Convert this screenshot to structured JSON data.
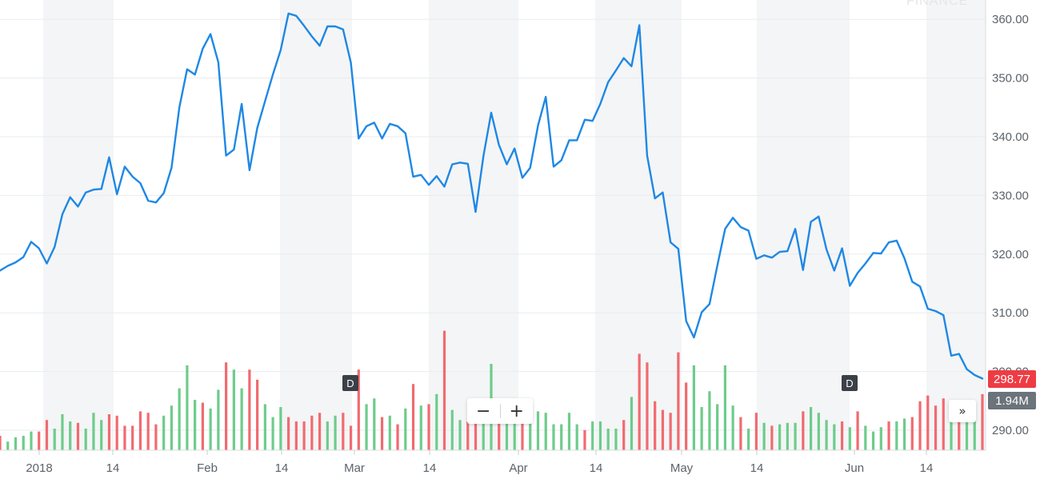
{
  "watermark": "FINANCE",
  "price_tag": "298.77",
  "volume_tag": "1.94M",
  "zoom_out_label": "−",
  "zoom_in_label": "+",
  "expand_label": "»",
  "dividend_marker_label": "D",
  "colors": {
    "line": "#1e88e5",
    "volume_up": "#6dcc8b",
    "volume_down": "#f16a70",
    "band": "#f4f5f6",
    "grid": "#e9ebed",
    "price_tag_bg": "#ee3c44",
    "volume_tag_bg": "#6b737b"
  },
  "chart_data": {
    "type": "line",
    "ylim": [
      285,
      361.5
    ],
    "y_ticks": [
      "290.00",
      "300.00",
      "310.00",
      "320.00",
      "330.00",
      "340.00",
      "350.00",
      "360.00"
    ],
    "x_ticks": [
      "2018",
      "14",
      "Feb",
      "14",
      "Mar",
      "14",
      "Apr",
      "14",
      "May",
      "14",
      "Jun",
      "14"
    ],
    "dividend_markers": [
      "Mar",
      "Jun"
    ],
    "price": [
      317.2,
      318.0,
      318.6,
      319.5,
      322.1,
      321.0,
      318.4,
      321.2,
      326.8,
      329.7,
      328.1,
      330.5,
      331.0,
      331.1,
      336.5,
      330.2,
      334.9,
      333.2,
      332.1,
      329.1,
      328.8,
      330.4,
      334.7,
      345.0,
      351.5,
      350.6,
      355.0,
      357.5,
      352.7,
      336.8,
      337.8,
      345.6,
      334.3,
      341.5,
      346.1,
      350.6,
      354.8,
      361.0,
      360.6,
      358.9,
      357.1,
      355.5,
      358.8,
      358.8,
      358.3,
      352.6,
      339.7,
      341.8,
      342.4,
      339.7,
      342.2,
      341.8,
      340.6,
      333.2,
      333.5,
      331.8,
      333.3,
      331.5,
      335.3,
      335.6,
      335.4,
      327.2,
      336.7,
      344.1,
      338.6,
      335.3,
      338.0,
      333.0,
      334.7,
      341.9,
      346.8,
      334.9,
      336.0,
      339.4,
      339.4,
      342.9,
      342.7,
      345.6,
      349.3,
      351.3,
      353.4,
      352.0,
      359.0,
      336.8,
      329.5,
      330.5,
      322.0,
      320.9,
      308.6,
      305.8,
      310.1,
      311.5,
      318.0,
      324.3,
      326.2,
      324.6,
      324.0,
      319.2,
      319.8,
      319.4,
      320.4,
      320.5,
      324.3,
      317.3,
      325.5,
      326.4,
      320.8,
      317.2,
      321.0,
      314.6,
      316.8,
      318.4,
      320.2,
      320.1,
      322.0,
      322.3,
      319.3,
      315.3,
      314.5,
      310.7,
      310.3,
      309.6,
      302.7,
      303.0,
      300.4,
      299.4,
      298.8
    ],
    "volume_scale_max": 8.5,
    "volume": [
      [
        1.0,
        0
      ],
      [
        0.6,
        1
      ],
      [
        0.9,
        1
      ],
      [
        1.0,
        1
      ],
      [
        1.3,
        1
      ],
      [
        1.3,
        0
      ],
      [
        2.1,
        0
      ],
      [
        1.5,
        1
      ],
      [
        2.5,
        1
      ],
      [
        2.0,
        1
      ],
      [
        1.9,
        0
      ],
      [
        1.5,
        1
      ],
      [
        2.6,
        1
      ],
      [
        2.1,
        1
      ],
      [
        2.5,
        0
      ],
      [
        2.4,
        0
      ],
      [
        1.7,
        0
      ],
      [
        1.7,
        0
      ],
      [
        2.7,
        0
      ],
      [
        2.6,
        0
      ],
      [
        1.8,
        0
      ],
      [
        2.4,
        1
      ],
      [
        3.1,
        1
      ],
      [
        4.3,
        1
      ],
      [
        5.9,
        1
      ],
      [
        3.5,
        1
      ],
      [
        3.3,
        0
      ],
      [
        2.9,
        1
      ],
      [
        4.2,
        1
      ],
      [
        6.1,
        0
      ],
      [
        5.6,
        1
      ],
      [
        4.3,
        1
      ],
      [
        5.6,
        0
      ],
      [
        4.9,
        0
      ],
      [
        3.2,
        1
      ],
      [
        2.3,
        1
      ],
      [
        3.0,
        1
      ],
      [
        2.3,
        0
      ],
      [
        2.0,
        0
      ],
      [
        2.0,
        0
      ],
      [
        2.4,
        0
      ],
      [
        2.6,
        0
      ],
      [
        2.0,
        1
      ],
      [
        2.4,
        1
      ],
      [
        2.6,
        0
      ],
      [
        1.7,
        0
      ],
      [
        5.6,
        0
      ],
      [
        3.2,
        1
      ],
      [
        3.6,
        1
      ],
      [
        2.3,
        0
      ],
      [
        2.4,
        1
      ],
      [
        1.8,
        0
      ],
      [
        2.9,
        1
      ],
      [
        4.6,
        0
      ],
      [
        3.1,
        1
      ],
      [
        3.2,
        0
      ],
      [
        3.9,
        1
      ],
      [
        8.3,
        0
      ],
      [
        2.8,
        1
      ],
      [
        2.1,
        1
      ],
      [
        2.0,
        0
      ],
      [
        2.1,
        0
      ],
      [
        2.7,
        1
      ],
      [
        6.0,
        1
      ],
      [
        1.9,
        0
      ],
      [
        2.3,
        1
      ],
      [
        2.2,
        1
      ],
      [
        2.0,
        0
      ],
      [
        2.4,
        1
      ],
      [
        2.7,
        1
      ],
      [
        2.6,
        1
      ],
      [
        1.8,
        1
      ],
      [
        1.8,
        1
      ],
      [
        2.6,
        1
      ],
      [
        1.8,
        1
      ],
      [
        1.4,
        0
      ],
      [
        2.0,
        1
      ],
      [
        2.0,
        1
      ],
      [
        1.5,
        1
      ],
      [
        1.5,
        1
      ],
      [
        2.1,
        0
      ],
      [
        3.7,
        1
      ],
      [
        6.7,
        0
      ],
      [
        6.1,
        0
      ],
      [
        3.4,
        0
      ],
      [
        2.8,
        0
      ],
      [
        2.6,
        0
      ],
      [
        6.8,
        0
      ],
      [
        4.7,
        0
      ],
      [
        5.9,
        1
      ],
      [
        3.0,
        1
      ],
      [
        4.1,
        1
      ],
      [
        3.2,
        1
      ],
      [
        5.9,
        1
      ],
      [
        3.1,
        1
      ],
      [
        2.3,
        0
      ],
      [
        1.5,
        1
      ],
      [
        2.6,
        0
      ],
      [
        1.9,
        1
      ],
      [
        1.7,
        0
      ],
      [
        1.8,
        1
      ],
      [
        1.9,
        1
      ],
      [
        1.9,
        1
      ],
      [
        2.7,
        0
      ],
      [
        3.0,
        1
      ],
      [
        2.6,
        1
      ],
      [
        2.1,
        1
      ],
      [
        1.8,
        1
      ],
      [
        2.0,
        0
      ],
      [
        1.6,
        1
      ],
      [
        2.7,
        0
      ],
      [
        1.7,
        1
      ],
      [
        1.3,
        1
      ],
      [
        1.6,
        1
      ],
      [
        2.0,
        0
      ],
      [
        2.0,
        1
      ],
      [
        2.2,
        1
      ],
      [
        2.3,
        0
      ],
      [
        3.4,
        0
      ],
      [
        3.8,
        0
      ],
      [
        3.1,
        0
      ],
      [
        3.6,
        0
      ],
      [
        2.5,
        1
      ],
      [
        2.2,
        0
      ],
      [
        2.0,
        1
      ],
      [
        2.8,
        1
      ],
      [
        3.9,
        0
      ]
    ]
  }
}
